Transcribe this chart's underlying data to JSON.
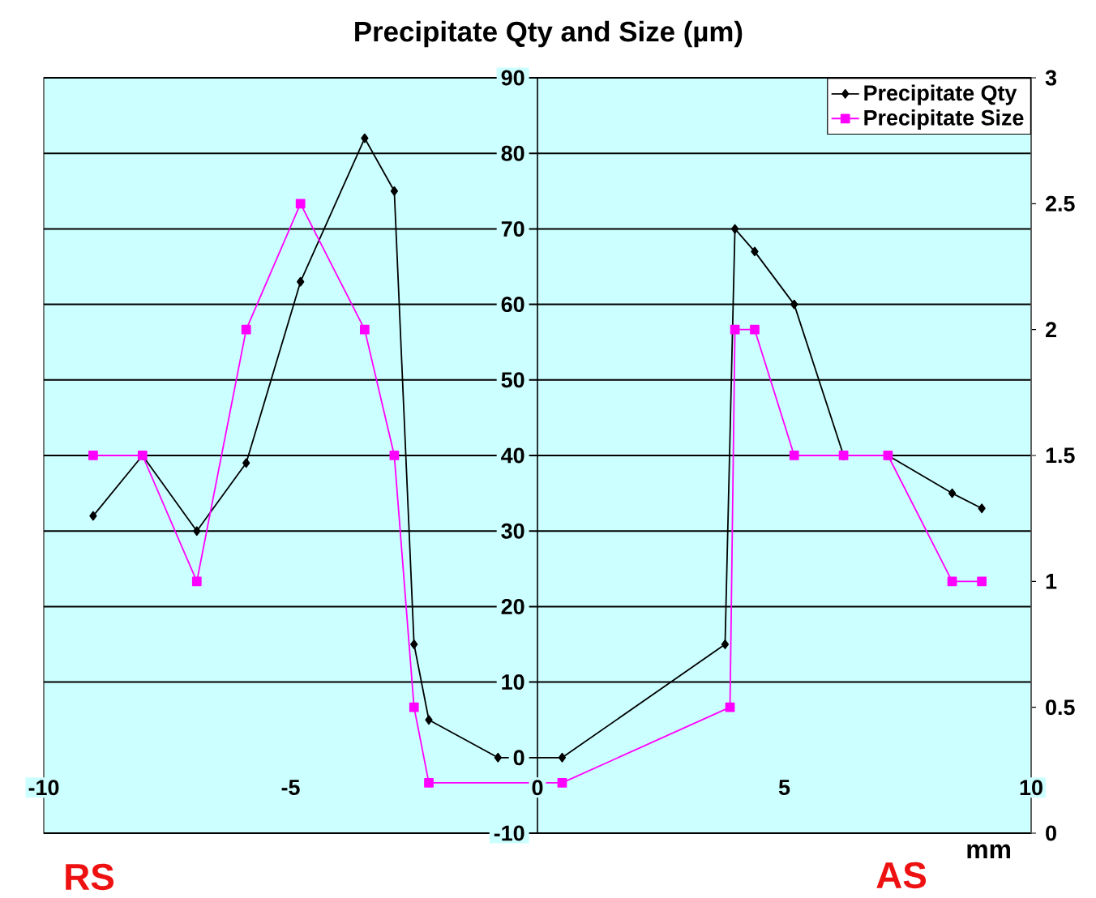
{
  "chart_data": {
    "type": "line",
    "title": "Precipitate Qty and Size (µm)",
    "xlabel": "mm",
    "annotations": [
      "RS",
      "AS"
    ],
    "xlim": [
      -10,
      10
    ],
    "xticks": [
      -10,
      -5,
      0,
      5,
      10
    ],
    "ylim": [
      -10,
      90
    ],
    "yticks": [
      -10,
      0,
      10,
      20,
      30,
      40,
      50,
      60,
      70,
      80,
      90
    ],
    "y2lim": [
      0,
      3
    ],
    "y2ticks": [
      0,
      0.5,
      1,
      1.5,
      2,
      2.5,
      3
    ],
    "grid": "y",
    "legend": "top right",
    "series": [
      {
        "name": "Precipitate Qty",
        "color": "#000000",
        "marker": "diamond",
        "x": [
          -9,
          -8,
          -6.9,
          -5.9,
          -4.8,
          -3.5,
          -2.9,
          -2.5,
          -2.2,
          -0.8,
          0.5,
          3.8,
          4.0,
          4.4,
          5.2,
          6.2,
          7.1,
          8.4,
          9.0
        ],
        "values": [
          32,
          40,
          30,
          39,
          63,
          82,
          75,
          15,
          5,
          0,
          0,
          15,
          70,
          67,
          60,
          40,
          40,
          35,
          33
        ]
      },
      {
        "name": "Precipitate Size",
        "color": "#ff00ff",
        "marker": "square",
        "axis": "y2",
        "x": [
          -9,
          -8,
          -6.9,
          -5.9,
          -4.8,
          -3.5,
          -2.9,
          -2.5,
          -2.2,
          0.5,
          3.9,
          4.0,
          4.4,
          5.2,
          6.2,
          7.1,
          8.4,
          9.0
        ],
        "values": [
          1.5,
          1.5,
          1,
          2,
          2.5,
          2,
          1.5,
          0.5,
          0.2,
          0.2,
          0.5,
          2,
          2,
          1.5,
          1.5,
          1.5,
          1,
          1
        ]
      }
    ]
  }
}
